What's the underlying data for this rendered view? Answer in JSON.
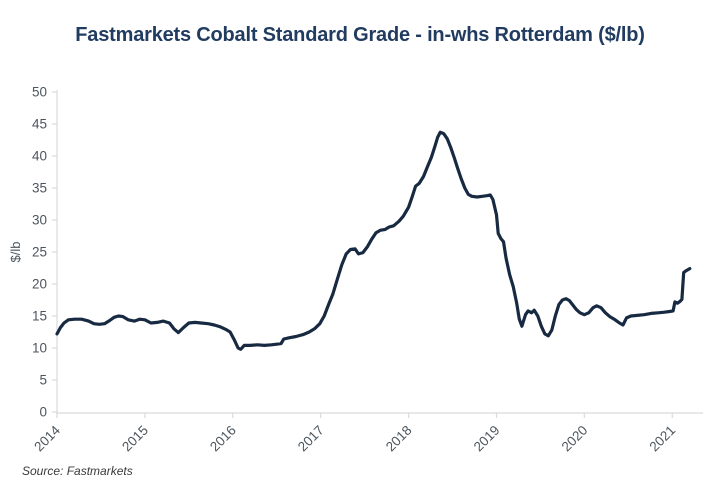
{
  "page": {
    "title": "Fastmarkets Cobalt Standard Grade - in-whs Rotterdam ($/lb)",
    "source": "Source: Fastmarkets"
  },
  "colors": {
    "line": "#172a42",
    "title": "#213c60",
    "tick_label": "#4d565e",
    "axis": "#d9dadc",
    "source_text": "#3a3a3a",
    "background": "#ffffff"
  },
  "chart_data": {
    "type": "line",
    "title": "Fastmarkets Cobalt Standard Grade - in-whs Rotterdam ($/lb)",
    "xlabel": "",
    "ylabel": "$/lb",
    "xlim": [
      2014,
      2021.35
    ],
    "ylim": [
      0,
      50
    ],
    "x_ticks": [
      2014,
      2015,
      2016,
      2017,
      2018,
      2019,
      2020,
      2021
    ],
    "y_ticks": [
      0,
      5,
      10,
      15,
      20,
      25,
      30,
      35,
      40,
      45,
      50
    ],
    "grid": false,
    "legend": false,
    "series": [
      {
        "name": "Cobalt Standard Grade, in-whs Rotterdam",
        "unit": "$/lb",
        "points": [
          [
            2014.0,
            12.2
          ],
          [
            2014.04,
            13.2
          ],
          [
            2014.08,
            13.9
          ],
          [
            2014.13,
            14.4
          ],
          [
            2014.2,
            14.5
          ],
          [
            2014.28,
            14.5
          ],
          [
            2014.36,
            14.2
          ],
          [
            2014.42,
            13.8
          ],
          [
            2014.48,
            13.7
          ],
          [
            2014.54,
            13.8
          ],
          [
            2014.6,
            14.3
          ],
          [
            2014.65,
            14.8
          ],
          [
            2014.7,
            15.0
          ],
          [
            2014.75,
            14.9
          ],
          [
            2014.81,
            14.4
          ],
          [
            2014.88,
            14.2
          ],
          [
            2014.94,
            14.5
          ],
          [
            2015.0,
            14.4
          ],
          [
            2015.07,
            13.9
          ],
          [
            2015.14,
            14.0
          ],
          [
            2015.21,
            14.2
          ],
          [
            2015.28,
            13.9
          ],
          [
            2015.33,
            13.0
          ],
          [
            2015.38,
            12.4
          ],
          [
            2015.44,
            13.2
          ],
          [
            2015.5,
            13.9
          ],
          [
            2015.57,
            14.0
          ],
          [
            2015.64,
            13.9
          ],
          [
            2015.72,
            13.8
          ],
          [
            2015.79,
            13.6
          ],
          [
            2015.86,
            13.3
          ],
          [
            2015.92,
            12.9
          ],
          [
            2015.97,
            12.5
          ],
          [
            2016.02,
            11.2
          ],
          [
            2016.06,
            10.0
          ],
          [
            2016.09,
            9.8
          ],
          [
            2016.13,
            10.4
          ],
          [
            2016.2,
            10.4
          ],
          [
            2016.28,
            10.5
          ],
          [
            2016.36,
            10.4
          ],
          [
            2016.44,
            10.5
          ],
          [
            2016.5,
            10.6
          ],
          [
            2016.55,
            10.7
          ],
          [
            2016.58,
            11.4
          ],
          [
            2016.64,
            11.6
          ],
          [
            2016.72,
            11.8
          ],
          [
            2016.8,
            12.1
          ],
          [
            2016.87,
            12.5
          ],
          [
            2016.93,
            13.0
          ],
          [
            2016.99,
            13.8
          ],
          [
            2017.04,
            15.0
          ],
          [
            2017.09,
            16.8
          ],
          [
            2017.14,
            18.5
          ],
          [
            2017.19,
            20.8
          ],
          [
            2017.24,
            23.0
          ],
          [
            2017.29,
            24.7
          ],
          [
            2017.34,
            25.4
          ],
          [
            2017.39,
            25.5
          ],
          [
            2017.43,
            24.7
          ],
          [
            2017.48,
            24.9
          ],
          [
            2017.53,
            25.8
          ],
          [
            2017.58,
            27.0
          ],
          [
            2017.63,
            28.0
          ],
          [
            2017.68,
            28.4
          ],
          [
            2017.73,
            28.5
          ],
          [
            2017.78,
            28.9
          ],
          [
            2017.83,
            29.1
          ],
          [
            2017.89,
            29.8
          ],
          [
            2017.94,
            30.6
          ],
          [
            2018.0,
            32.0
          ],
          [
            2018.04,
            33.6
          ],
          [
            2018.08,
            35.3
          ],
          [
            2018.12,
            35.7
          ],
          [
            2018.17,
            36.8
          ],
          [
            2018.22,
            38.5
          ],
          [
            2018.26,
            39.8
          ],
          [
            2018.3,
            41.5
          ],
          [
            2018.33,
            42.9
          ],
          [
            2018.36,
            43.7
          ],
          [
            2018.4,
            43.5
          ],
          [
            2018.44,
            42.7
          ],
          [
            2018.48,
            41.3
          ],
          [
            2018.52,
            39.7
          ],
          [
            2018.56,
            38.0
          ],
          [
            2018.6,
            36.4
          ],
          [
            2018.64,
            35.0
          ],
          [
            2018.68,
            34.0
          ],
          [
            2018.72,
            33.7
          ],
          [
            2018.78,
            33.6
          ],
          [
            2018.84,
            33.7
          ],
          [
            2018.89,
            33.8
          ],
          [
            2018.93,
            33.9
          ],
          [
            2018.96,
            33.2
          ],
          [
            2019.0,
            30.8
          ],
          [
            2019.02,
            27.9
          ],
          [
            2019.05,
            27.1
          ],
          [
            2019.08,
            26.6
          ],
          [
            2019.11,
            24.0
          ],
          [
            2019.15,
            21.5
          ],
          [
            2019.19,
            19.6
          ],
          [
            2019.23,
            17.0
          ],
          [
            2019.26,
            14.5
          ],
          [
            2019.29,
            13.4
          ],
          [
            2019.33,
            15.2
          ],
          [
            2019.36,
            15.8
          ],
          [
            2019.4,
            15.5
          ],
          [
            2019.43,
            15.9
          ],
          [
            2019.47,
            15.0
          ],
          [
            2019.51,
            13.4
          ],
          [
            2019.55,
            12.2
          ],
          [
            2019.59,
            11.9
          ],
          [
            2019.63,
            12.8
          ],
          [
            2019.67,
            15.0
          ],
          [
            2019.71,
            16.8
          ],
          [
            2019.75,
            17.5
          ],
          [
            2019.79,
            17.7
          ],
          [
            2019.83,
            17.4
          ],
          [
            2019.87,
            16.7
          ],
          [
            2019.91,
            16.0
          ],
          [
            2019.95,
            15.5
          ],
          [
            2020.0,
            15.2
          ],
          [
            2020.05,
            15.5
          ],
          [
            2020.1,
            16.3
          ],
          [
            2020.14,
            16.6
          ],
          [
            2020.19,
            16.3
          ],
          [
            2020.24,
            15.5
          ],
          [
            2020.29,
            14.9
          ],
          [
            2020.35,
            14.4
          ],
          [
            2020.4,
            13.9
          ],
          [
            2020.44,
            13.6
          ],
          [
            2020.48,
            14.7
          ],
          [
            2020.53,
            15.0
          ],
          [
            2020.6,
            15.1
          ],
          [
            2020.68,
            15.2
          ],
          [
            2020.76,
            15.4
          ],
          [
            2020.84,
            15.5
          ],
          [
            2020.91,
            15.6
          ],
          [
            2020.97,
            15.7
          ],
          [
            2021.01,
            15.8
          ],
          [
            2021.03,
            17.2
          ],
          [
            2021.06,
            17.0
          ],
          [
            2021.09,
            17.3
          ],
          [
            2021.11,
            17.6
          ],
          [
            2021.13,
            21.8
          ],
          [
            2021.16,
            22.1
          ],
          [
            2021.2,
            22.4
          ]
        ]
      }
    ]
  }
}
